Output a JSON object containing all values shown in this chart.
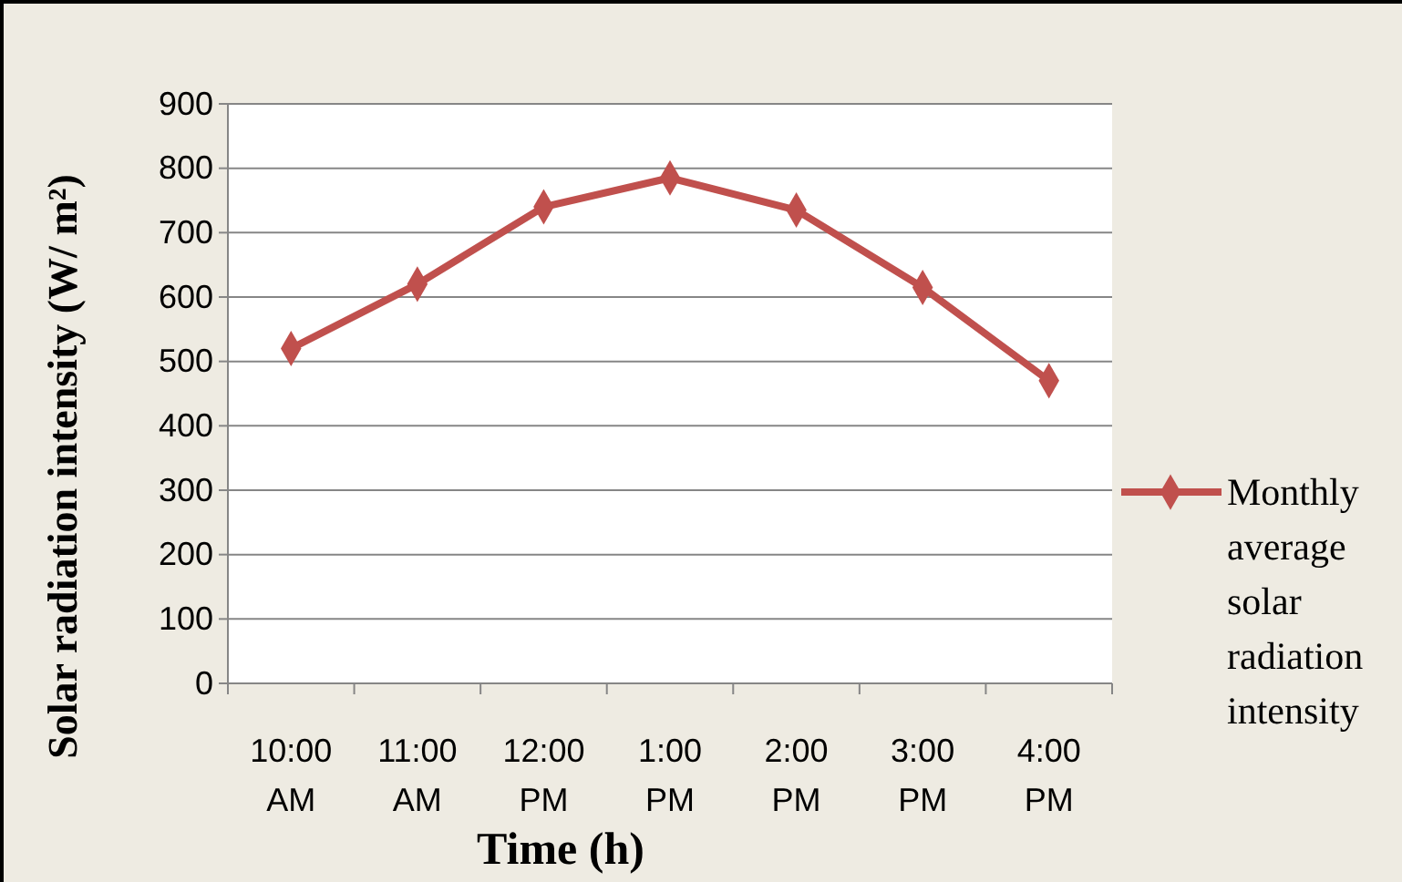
{
  "chart_data": {
    "type": "line",
    "xlabel": "Time (h)",
    "ylabel": "Solar radiation intensity (W/ m²)",
    "categories": [
      "10:00 AM",
      "11:00 AM",
      "12:00 PM",
      "1:00 PM",
      "2:00 PM",
      "3:00 PM",
      "4:00 PM"
    ],
    "series": [
      {
        "name": "Monthly average solar radiation intensity",
        "color": "#c0504d",
        "values": [
          520,
          620,
          740,
          785,
          735,
          615,
          470
        ]
      }
    ],
    "ylim": [
      0,
      900
    ],
    "yticks": [
      0,
      100,
      200,
      300,
      400,
      500,
      600,
      700,
      800,
      900
    ],
    "grid": "y",
    "legend": "right",
    "marker": "diamond",
    "line_style": "solid"
  }
}
